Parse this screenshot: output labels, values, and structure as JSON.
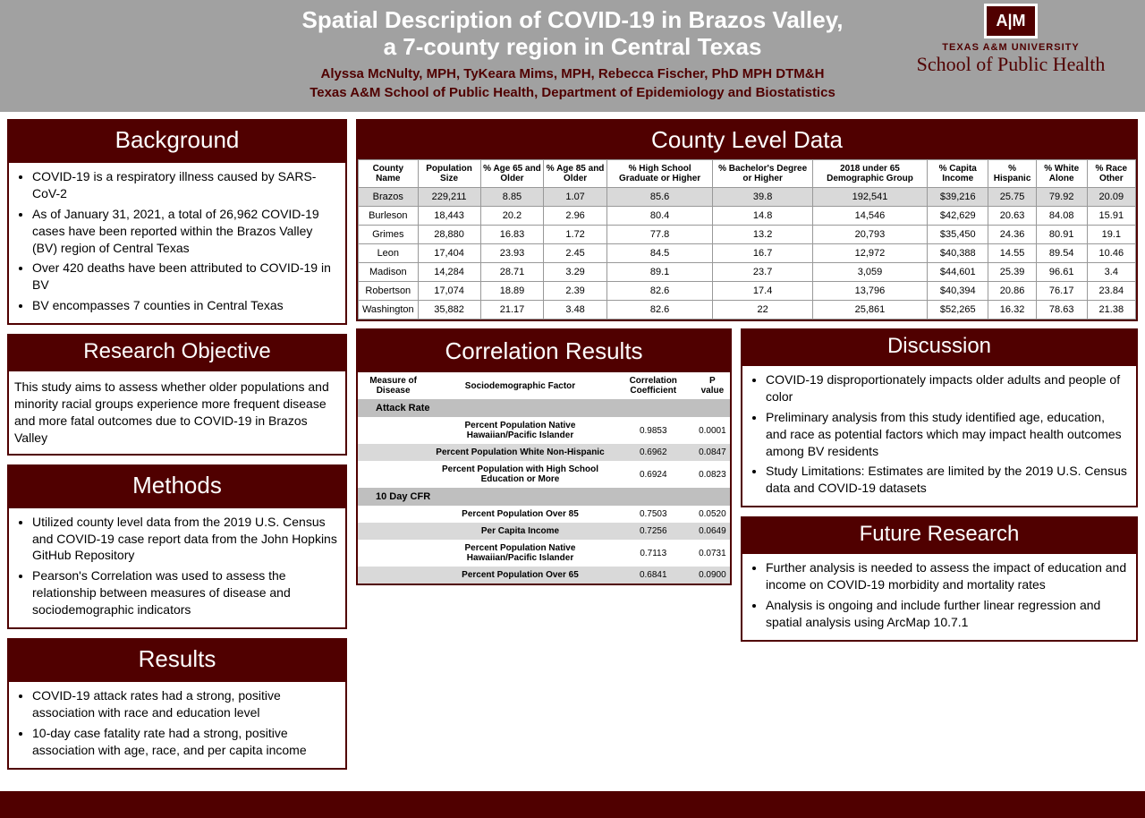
{
  "header": {
    "title_line1": "Spatial Description of COVID-19 in Brazos Valley,",
    "title_line2": "a 7-county region in Central Texas",
    "authors": "Alyssa McNulty, MPH, TyKeara Mims, MPH, Rebecca Fischer, PhD MPH DTM&H",
    "affiliation": "Texas A&M School of Public Health, Department of Epidemiology and Biostatistics",
    "logo_text": "A|M",
    "logo_univ": "TEXAS A&M UNIVERSITY",
    "logo_sph": "School of Public Health"
  },
  "background": {
    "title": "Background",
    "items": [
      "COVID-19 is a respiratory illness caused by SARS-CoV-2",
      "As of January 31, 2021, a total of 26,962 COVID-19 cases have been reported within the Brazos Valley (BV) region of Central Texas",
      "Over 420 deaths have been attributed to COVID-19 in BV",
      "BV encompasses 7 counties in Central Texas"
    ]
  },
  "objective": {
    "title": "Research Objective",
    "text": "This study aims to assess whether older populations and minority racial groups experience more frequent disease and more fatal outcomes due to COVID-19 in Brazos Valley"
  },
  "methods": {
    "title": "Methods",
    "items": [
      "Utilized county level data from the 2019 U.S. Census and COVID-19 case report data from the John Hopkins GitHub Repository",
      "Pearson's Correlation was used to assess the relationship between measures of disease and sociodemographic indicators"
    ]
  },
  "results": {
    "title": "Results",
    "items": [
      "COVID-19 attack rates had a strong, positive association with race and education level",
      "10-day case fatality rate had a strong, positive association with age, race, and per capita income"
    ]
  },
  "county": {
    "title": "County Level Data",
    "columns": [
      "County Name",
      "Population Size",
      "% Age 65 and Older",
      "% Age 85 and Older",
      "% High School Graduate or Higher",
      "% Bachelor's Degree or Higher",
      "2018 under 65 Demographic Group",
      "% Capita Income",
      "% Hispanic",
      "% White Alone",
      "% Race Other"
    ],
    "rows": [
      [
        "Brazos",
        "229,211",
        "8.85",
        "1.07",
        "85.6",
        "39.8",
        "192,541",
        "$39,216",
        "25.75",
        "79.92",
        "20.09"
      ],
      [
        "Burleson",
        "18,443",
        "20.2",
        "2.96",
        "80.4",
        "14.8",
        "14,546",
        "$42,629",
        "20.63",
        "84.08",
        "15.91"
      ],
      [
        "Grimes",
        "28,880",
        "16.83",
        "1.72",
        "77.8",
        "13.2",
        "20,793",
        "$35,450",
        "24.36",
        "80.91",
        "19.1"
      ],
      [
        "Leon",
        "17,404",
        "23.93",
        "2.45",
        "84.5",
        "16.7",
        "12,972",
        "$40,388",
        "14.55",
        "89.54",
        "10.46"
      ],
      [
        "Madison",
        "14,284",
        "28.71",
        "3.29",
        "89.1",
        "23.7",
        "3,059",
        "$44,601",
        "25.39",
        "96.61",
        "3.4"
      ],
      [
        "Robertson",
        "17,074",
        "18.89",
        "2.39",
        "82.6",
        "17.4",
        "13,796",
        "$40,394",
        "20.86",
        "76.17",
        "23.84"
      ],
      [
        "Washington",
        "35,882",
        "21.17",
        "3.48",
        "82.6",
        "22",
        "25,861",
        "$52,265",
        "16.32",
        "78.63",
        "21.38"
      ]
    ]
  },
  "corr": {
    "title": "Correlation Results",
    "columns": [
      "Measure of Disease",
      "Sociodemographic Factor",
      "Correlation Coefficient",
      "P value"
    ],
    "sections": [
      {
        "header": "Attack Rate",
        "rows": [
          [
            "",
            "Percent Population Native Hawaiian/Pacific Islander",
            "0.9853",
            "0.0001"
          ],
          [
            "",
            "Percent Population White Non-Hispanic",
            "0.6962",
            "0.0847"
          ],
          [
            "",
            "Percent Population with High School Education or More",
            "0.6924",
            "0.0823"
          ]
        ]
      },
      {
        "header": "10 Day CFR",
        "rows": [
          [
            "",
            "Percent Population Over 85",
            "0.7503",
            "0.0520"
          ],
          [
            "",
            "Per Capita Income",
            "0.7256",
            "0.0649"
          ],
          [
            "",
            "Percent Population Native Hawaiian/Pacific Islander",
            "0.7113",
            "0.0731"
          ],
          [
            "",
            "Percent Population Over 65",
            "0.6841",
            "0.0900"
          ]
        ]
      }
    ]
  },
  "discussion": {
    "title": "Discussion",
    "items": [
      "COVID-19 disproportionately impacts older adults and people of color",
      "Preliminary analysis from this study identified age, education, and race as potential factors which may impact health outcomes among BV residents",
      "Study Limitations: Estimates are limited by the 2019 U.S. Census data and COVID-19 datasets"
    ]
  },
  "future": {
    "title": "Future Research",
    "items": [
      "Further analysis is needed to assess the impact of education and income on COVID-19 morbidity and mortality rates",
      "Analysis is ongoing and include further linear regression and spatial analysis using ArcMap 10.7.1"
    ]
  },
  "colors": {
    "maroon": "#500000",
    "header_bg": "#a1a1a1",
    "shade1": "#d9d9d9",
    "shade2": "#bfbfbf"
  }
}
